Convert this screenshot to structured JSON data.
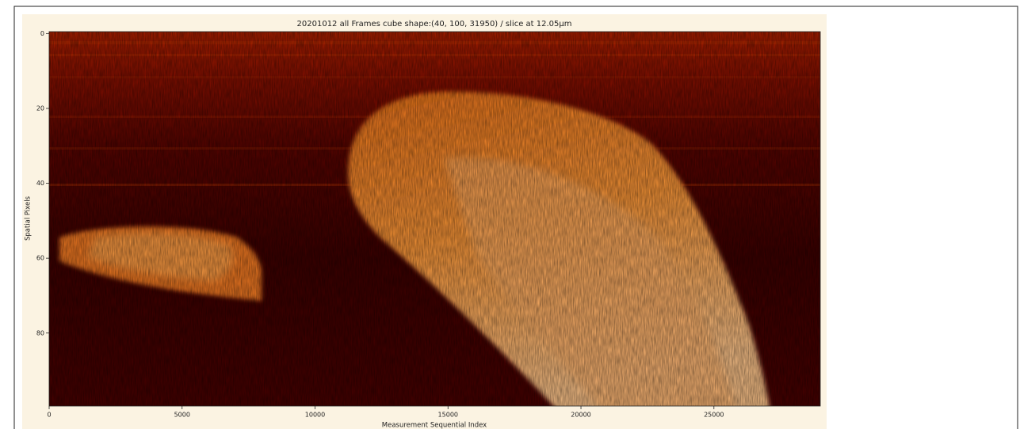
{
  "chart_data": {
    "type": "heatmap",
    "title": "20201012 all Frames cube shape:(40, 100, 31950) /  slice at 12.05μm",
    "xlabel": "Measurement Sequential Index",
    "ylabel": "Spatial Pixels",
    "xlim": [
      0,
      29000
    ],
    "ylim": [
      99.5,
      -0.5
    ],
    "xticks": [
      0,
      5000,
      10000,
      15000,
      20000,
      25000
    ],
    "yticks": [
      0,
      20,
      40,
      60,
      80
    ]
  }
}
